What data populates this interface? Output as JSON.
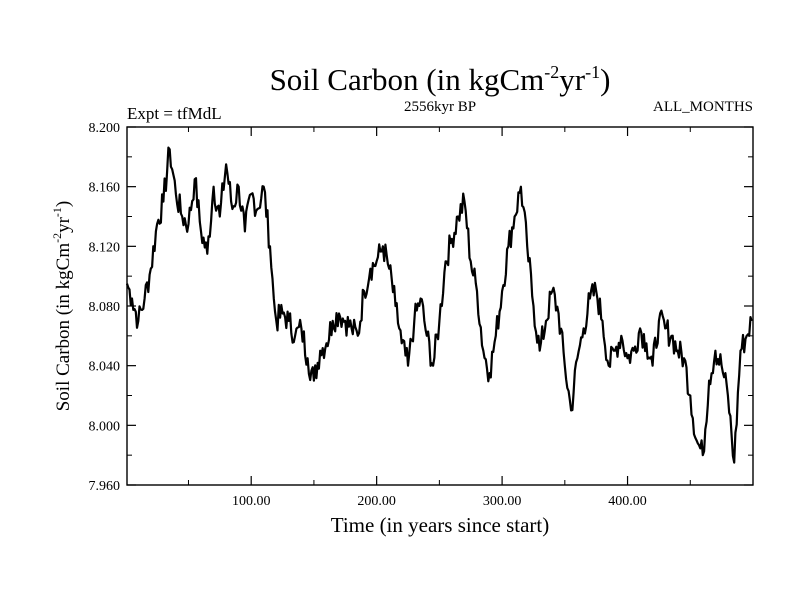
{
  "header": {
    "title_main": "Soil Carbon (in kgCm",
    "title_exp1": "-2",
    "title_mid": "yr",
    "title_exp2": "-1",
    "title_close": ")",
    "experiment": "Expt = tfMdL",
    "period": "2556kyr BP",
    "months": "ALL_MONTHS"
  },
  "chart_data": {
    "type": "line",
    "title": "Soil Carbon (in kgCm-2yr-1)",
    "xlabel": "Time (in years since start)",
    "ylabel": "Soil Carbon (in kgCm-2yr-1)",
    "ylabel_parts": {
      "a": "Soil Carbon (in kgCm",
      "e1": "-2",
      "b": "yr",
      "e2": "-1",
      "c": ")"
    },
    "xlim": [
      1,
      500
    ],
    "ylim": [
      7.96,
      8.2
    ],
    "xticks": [
      100,
      200,
      300,
      400
    ],
    "xtick_labels": [
      "100.00",
      "200.00",
      "300.00",
      "400.00"
    ],
    "yticks": [
      7.96,
      8.0,
      8.04,
      8.08,
      8.12,
      8.16,
      8.2
    ],
    "ytick_labels": [
      "7.960",
      "8.000",
      "8.040",
      "8.080",
      "8.120",
      "8.160",
      "8.200"
    ],
    "series": [
      {
        "name": "Soil Carbon",
        "x": [
          1,
          5,
          10,
          15,
          20,
          25,
          30,
          35,
          40,
          45,
          50,
          55,
          60,
          65,
          70,
          75,
          80,
          85,
          90,
          95,
          100,
          105,
          110,
          115,
          118,
          120,
          125,
          130,
          135,
          140,
          145,
          150,
          155,
          160,
          165,
          170,
          175,
          180,
          185,
          190,
          195,
          200,
          205,
          210,
          215,
          220,
          225,
          230,
          235,
          240,
          245,
          250,
          255,
          260,
          265,
          270,
          275,
          280,
          285,
          290,
          295,
          300,
          305,
          310,
          315,
          320,
          325,
          330,
          335,
          340,
          345,
          350,
          355,
          360,
          365,
          370,
          375,
          380,
          385,
          390,
          395,
          400,
          405,
          410,
          415,
          420,
          425,
          430,
          435,
          440,
          445,
          450,
          455,
          460,
          465,
          470,
          475,
          480,
          485,
          490,
          495,
          499
        ],
        "values": [
          8.095,
          8.085,
          8.07,
          8.085,
          8.105,
          8.135,
          8.15,
          8.185,
          8.155,
          8.14,
          8.135,
          8.165,
          8.13,
          8.115,
          8.16,
          8.14,
          8.175,
          8.145,
          8.16,
          8.13,
          8.155,
          8.145,
          8.16,
          8.12,
          8.085,
          8.07,
          8.075,
          8.07,
          8.06,
          8.065,
          8.045,
          8.03,
          8.05,
          8.055,
          8.07,
          8.075,
          8.07,
          8.065,
          8.06,
          8.09,
          8.105,
          8.11,
          8.12,
          8.105,
          8.08,
          8.055,
          8.04,
          8.07,
          8.085,
          8.06,
          8.04,
          8.07,
          8.11,
          8.125,
          8.14,
          8.15,
          8.11,
          8.09,
          8.05,
          8.035,
          8.06,
          8.09,
          8.12,
          8.14,
          8.16,
          8.12,
          8.08,
          8.05,
          8.07,
          8.09,
          8.075,
          8.04,
          8.01,
          8.045,
          8.065,
          8.085,
          8.09,
          8.07,
          8.04,
          8.05,
          8.06,
          8.045,
          8.05,
          8.065,
          8.055,
          8.04,
          8.07,
          8.065,
          8.06,
          8.05,
          8.045,
          8.02,
          7.99,
          7.98,
          8.03,
          8.05,
          8.04,
          8.02,
          7.975,
          8.05,
          8.06,
          8.07
        ]
      }
    ]
  }
}
